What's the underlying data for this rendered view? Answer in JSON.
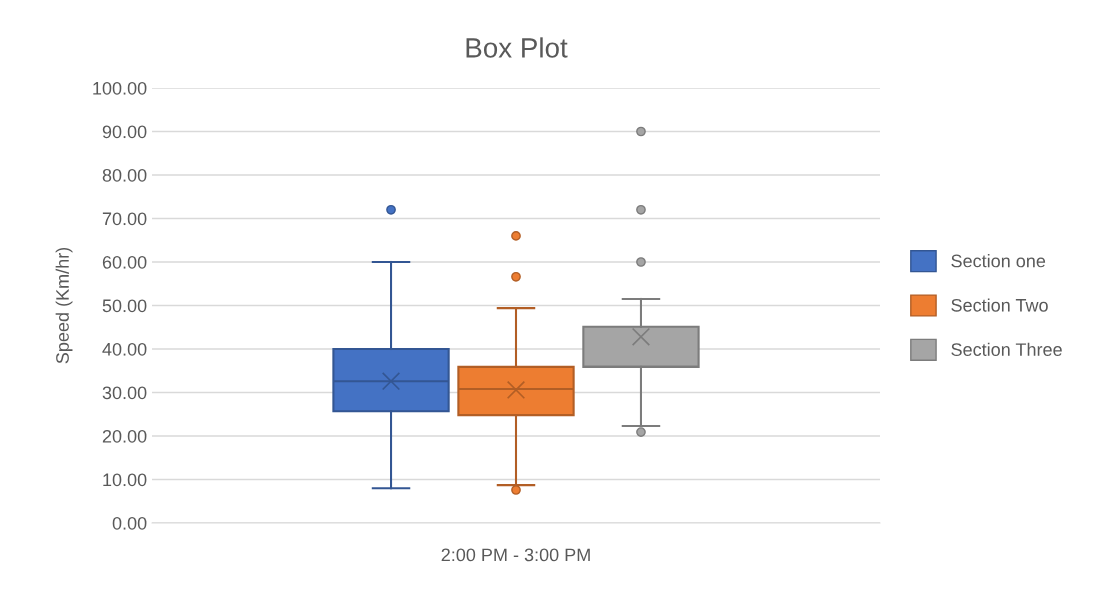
{
  "chart_data": {
    "type": "box",
    "title": "Box Plot",
    "ylabel": "Speed (Km/hr)",
    "categories": [
      "2:00 PM - 3:00 PM"
    ],
    "ylim": [
      0,
      100
    ],
    "yticks": [
      {
        "value": 0,
        "label": "0.00"
      },
      {
        "value": 10,
        "label": "10.00"
      },
      {
        "value": 20,
        "label": "20.00"
      },
      {
        "value": 30,
        "label": "30.00"
      },
      {
        "value": 40,
        "label": "40.00"
      },
      {
        "value": 50,
        "label": "50.00"
      },
      {
        "value": 60,
        "label": "60.00"
      },
      {
        "value": 70,
        "label": "70.00"
      },
      {
        "value": 80,
        "label": "80.00"
      },
      {
        "value": 90,
        "label": "90.00"
      },
      {
        "value": 100,
        "label": "100.00"
      }
    ],
    "grid": "y",
    "legend": "right",
    "series": [
      {
        "name": "Section one",
        "color": "#4472c4",
        "boxes": [
          {
            "low": 8,
            "q1": 25.7,
            "median": 32.6,
            "q3": 40,
            "high": 60,
            "mean": 32.6,
            "outliers": [
              72
            ]
          }
        ]
      },
      {
        "name": "Section Two",
        "color": "#ed7d31",
        "boxes": [
          {
            "low": 8.7,
            "q1": 24.8,
            "median": 30.8,
            "q3": 35.9,
            "high": 49.4,
            "mean": 30.6,
            "outliers": [
              66,
              56.6,
              7.6
            ]
          }
        ]
      },
      {
        "name": "Section Three",
        "color": "#a5a5a5",
        "boxes": [
          {
            "low": 22.3,
            "q1": 35.9,
            "median": 35.9,
            "q3": 45.1,
            "high": 51.5,
            "mean": 42.8,
            "outliers": [
              90,
              72,
              60,
              20.9
            ]
          }
        ]
      }
    ]
  }
}
